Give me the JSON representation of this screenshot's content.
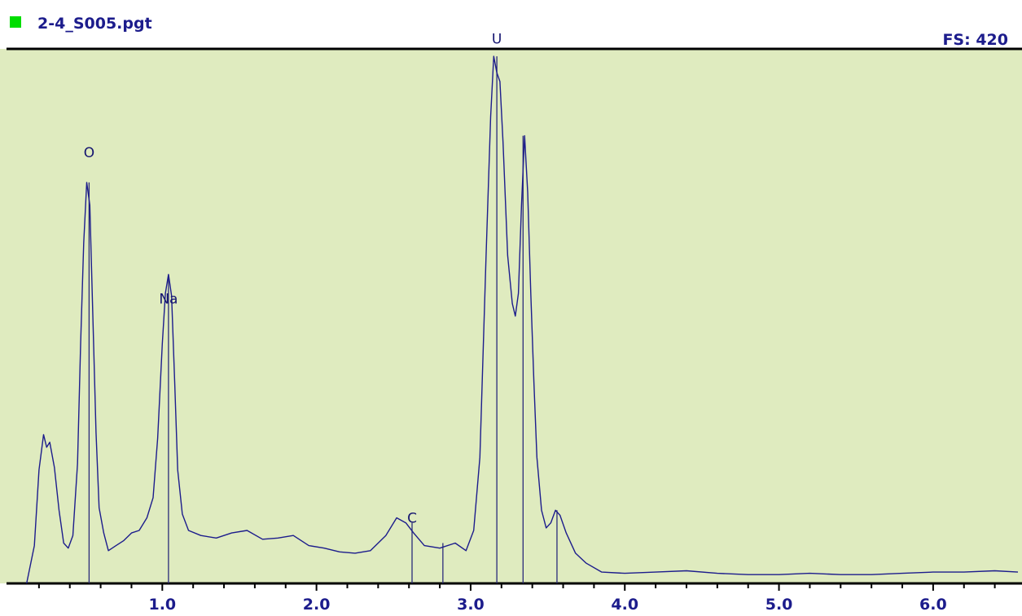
{
  "header": {
    "filename": "2-4_S005.pgt",
    "fullscale": "FS: 420",
    "indicator_color": "#00dd00"
  },
  "colors": {
    "plot_background": "#dfebbf",
    "trace": "#1c1c8c",
    "axis": "#000000",
    "text": "#1c1c8c"
  },
  "chart_data": {
    "type": "line",
    "title": "",
    "xlabel": "",
    "ylabel": "",
    "xlim": [
      0.0,
      6.55
    ],
    "ylim": [
      0,
      420
    ],
    "xticks": [
      1.0,
      2.0,
      3.0,
      4.0,
      5.0,
      6.0
    ],
    "xtick_labels": [
      "1.0",
      "2.0",
      "3.0",
      "4.0",
      "5.0",
      "6.0"
    ],
    "grid": false,
    "legend": "none",
    "series": [
      {
        "points": [
          [
            0.12,
            0
          ],
          [
            0.17,
            30
          ],
          [
            0.2,
            90
          ],
          [
            0.23,
            118
          ],
          [
            0.25,
            108
          ],
          [
            0.27,
            112
          ],
          [
            0.3,
            92
          ],
          [
            0.33,
            58
          ],
          [
            0.36,
            32
          ],
          [
            0.39,
            28
          ],
          [
            0.42,
            38
          ],
          [
            0.45,
            95
          ],
          [
            0.47,
            190
          ],
          [
            0.49,
            270
          ],
          [
            0.51,
            318
          ],
          [
            0.53,
            300
          ],
          [
            0.55,
            210
          ],
          [
            0.57,
            120
          ],
          [
            0.59,
            60
          ],
          [
            0.62,
            40
          ],
          [
            0.65,
            26
          ],
          [
            0.7,
            30
          ],
          [
            0.75,
            34
          ],
          [
            0.8,
            40
          ],
          [
            0.85,
            42
          ],
          [
            0.9,
            52
          ],
          [
            0.94,
            68
          ],
          [
            0.97,
            115
          ],
          [
            1.0,
            190
          ],
          [
            1.02,
            230
          ],
          [
            1.04,
            245
          ],
          [
            1.06,
            228
          ],
          [
            1.08,
            160
          ],
          [
            1.1,
            90
          ],
          [
            1.13,
            55
          ],
          [
            1.17,
            42
          ],
          [
            1.25,
            38
          ],
          [
            1.35,
            36
          ],
          [
            1.45,
            40
          ],
          [
            1.55,
            42
          ],
          [
            1.65,
            35
          ],
          [
            1.75,
            36
          ],
          [
            1.85,
            38
          ],
          [
            1.95,
            30
          ],
          [
            2.05,
            28
          ],
          [
            2.15,
            25
          ],
          [
            2.25,
            24
          ],
          [
            2.35,
            26
          ],
          [
            2.45,
            38
          ],
          [
            2.52,
            52
          ],
          [
            2.58,
            48
          ],
          [
            2.63,
            40
          ],
          [
            2.7,
            30
          ],
          [
            2.8,
            28
          ],
          [
            2.9,
            32
          ],
          [
            2.97,
            26
          ],
          [
            3.02,
            42
          ],
          [
            3.06,
            100
          ],
          [
            3.1,
            260
          ],
          [
            3.13,
            370
          ],
          [
            3.15,
            418
          ],
          [
            3.17,
            405
          ],
          [
            3.19,
            398
          ],
          [
            3.21,
            350
          ],
          [
            3.24,
            260
          ],
          [
            3.27,
            222
          ],
          [
            3.29,
            212
          ],
          [
            3.31,
            230
          ],
          [
            3.33,
            300
          ],
          [
            3.35,
            355
          ],
          [
            3.37,
            310
          ],
          [
            3.39,
            230
          ],
          [
            3.41,
            160
          ],
          [
            3.43,
            100
          ],
          [
            3.46,
            58
          ],
          [
            3.49,
            44
          ],
          [
            3.52,
            48
          ],
          [
            3.55,
            58
          ],
          [
            3.58,
            54
          ],
          [
            3.62,
            40
          ],
          [
            3.68,
            24
          ],
          [
            3.75,
            16
          ],
          [
            3.85,
            9
          ],
          [
            4.0,
            8
          ],
          [
            4.2,
            9
          ],
          [
            4.4,
            10
          ],
          [
            4.6,
            8
          ],
          [
            4.8,
            7
          ],
          [
            5.0,
            7
          ],
          [
            5.2,
            8
          ],
          [
            5.4,
            7
          ],
          [
            5.6,
            7
          ],
          [
            5.8,
            8
          ],
          [
            6.0,
            9
          ],
          [
            6.2,
            9
          ],
          [
            6.4,
            10
          ],
          [
            6.55,
            9
          ]
        ]
      }
    ],
    "peak_markers": [
      {
        "label": "O",
        "x": 0.525,
        "height": 318,
        "label_height": 338
      },
      {
        "label": "Na",
        "x": 1.04,
        "height": 245,
        "label_height": 222
      },
      {
        "label": "C",
        "x": 2.62,
        "height": 48,
        "label_height": 48
      },
      {
        "label": "",
        "x": 2.82,
        "height": 32
      },
      {
        "label": "U",
        "x": 3.17,
        "height": 418,
        "label_height": 428
      },
      {
        "label": "",
        "x": 3.34,
        "height": 355
      },
      {
        "label": "",
        "x": 3.56,
        "height": 58
      }
    ]
  }
}
